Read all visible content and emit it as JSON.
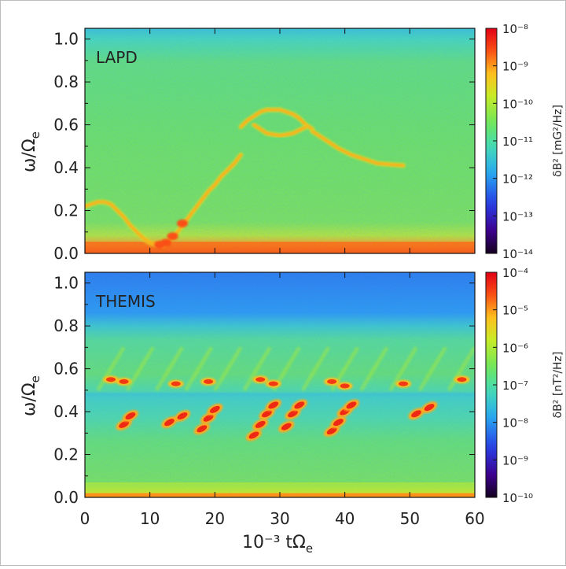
{
  "chart_data": [
    {
      "type": "heatmap",
      "title": "",
      "panel_label": "LAPD",
      "ylabel": "ω/Ω",
      "ylabel_sub": "e",
      "ylim": [
        0.0,
        1.05
      ],
      "yticks": [
        "0.0",
        "0.2",
        "0.4",
        "0.6",
        "0.8",
        "1.0"
      ],
      "ytick_values": [
        0.0,
        0.2,
        0.4,
        0.6,
        0.8,
        1.0
      ],
      "xlim": [
        0,
        60
      ],
      "xticks": [
        0,
        10,
        20,
        30,
        40,
        50,
        60
      ],
      "background_level": "1e-10",
      "features": [
        {
          "x": [
            0,
            1,
            2,
            3,
            4,
            5,
            6,
            7,
            8,
            9,
            10,
            11,
            12
          ],
          "y": [
            0.22,
            0.23,
            0.24,
            0.24,
            0.23,
            0.2,
            0.17,
            0.13,
            0.1,
            0.07,
            0.05,
            0.04,
            0.04
          ]
        },
        {
          "x": [
            12,
            13,
            14,
            15,
            16,
            17,
            18,
            19,
            20,
            21,
            22,
            23,
            24
          ],
          "y": [
            0.04,
            0.06,
            0.09,
            0.13,
            0.17,
            0.21,
            0.25,
            0.29,
            0.32,
            0.36,
            0.39,
            0.42,
            0.46
          ]
        },
        {
          "x": [
            24,
            25,
            26,
            27,
            28,
            29,
            30,
            31,
            32,
            33,
            34,
            35
          ],
          "y": [
            0.59,
            0.62,
            0.64,
            0.66,
            0.67,
            0.67,
            0.67,
            0.66,
            0.65,
            0.63,
            0.6,
            0.58
          ]
        },
        {
          "x": [
            35,
            37,
            39,
            41,
            43,
            45,
            47,
            49
          ],
          "y": [
            0.57,
            0.53,
            0.49,
            0.46,
            0.44,
            0.42,
            0.415,
            0.41
          ]
        },
        {
          "x": [
            26,
            28,
            30,
            32,
            34
          ],
          "y": [
            0.6,
            0.56,
            0.55,
            0.56,
            0.59
          ]
        }
      ],
      "colorbar": {
        "label": "δB² [mG²/Hz]",
        "ticks": [
          "10⁻⁸",
          "10⁻⁹",
          "10⁻¹⁰",
          "10⁻¹¹",
          "10⁻¹²",
          "10⁻¹³",
          "10⁻¹⁴"
        ],
        "log10_range": [
          -14,
          -8
        ]
      }
    },
    {
      "type": "heatmap",
      "title": "",
      "panel_label": "THEMIS",
      "ylabel": "ω/Ω",
      "ylabel_sub": "e",
      "xlabel": "10⁻³ tΩ",
      "xlabel_sub": "e",
      "ylim": [
        0.0,
        1.05
      ],
      "yticks": [
        "0.0",
        "0.2",
        "0.4",
        "0.6",
        "0.8",
        "1.0"
      ],
      "ytick_values": [
        0.0,
        0.2,
        0.4,
        0.6,
        0.8,
        1.0
      ],
      "xlim": [
        0,
        60
      ],
      "xticks": [
        "0",
        "10",
        "20",
        "30",
        "40",
        "50",
        "60"
      ],
      "xtick_values": [
        0,
        10,
        20,
        30,
        40,
        50,
        60
      ],
      "background_level": "1e-7",
      "lower_band_blobs": [
        {
          "x": 6,
          "y": 0.34
        },
        {
          "x": 7,
          "y": 0.38
        },
        {
          "x": 13,
          "y": 0.35
        },
        {
          "x": 15,
          "y": 0.38
        },
        {
          "x": 18,
          "y": 0.32
        },
        {
          "x": 19,
          "y": 0.37
        },
        {
          "x": 20,
          "y": 0.41
        },
        {
          "x": 26,
          "y": 0.29
        },
        {
          "x": 27,
          "y": 0.34
        },
        {
          "x": 28,
          "y": 0.39
        },
        {
          "x": 29,
          "y": 0.43
        },
        {
          "x": 31,
          "y": 0.33
        },
        {
          "x": 32,
          "y": 0.39
        },
        {
          "x": 33,
          "y": 0.43
        },
        {
          "x": 38,
          "y": 0.31
        },
        {
          "x": 39,
          "y": 0.35
        },
        {
          "x": 40,
          "y": 0.4
        },
        {
          "x": 41,
          "y": 0.43
        },
        {
          "x": 51,
          "y": 0.39
        },
        {
          "x": 53,
          "y": 0.42
        }
      ],
      "upper_band_blobs": [
        {
          "x": 4,
          "y": 0.55
        },
        {
          "x": 6,
          "y": 0.54
        },
        {
          "x": 14,
          "y": 0.53
        },
        {
          "x": 19,
          "y": 0.54
        },
        {
          "x": 27,
          "y": 0.55
        },
        {
          "x": 29,
          "y": 0.53
        },
        {
          "x": 38,
          "y": 0.54
        },
        {
          "x": 40,
          "y": 0.52
        },
        {
          "x": 49,
          "y": 0.53
        },
        {
          "x": 58,
          "y": 0.55
        }
      ],
      "colorbar": {
        "label": "δB² [nT²/Hz]",
        "ticks": [
          "10⁻⁴",
          "10⁻⁵",
          "10⁻⁶",
          "10⁻⁷",
          "10⁻⁸",
          "10⁻⁹",
          "10⁻¹⁰"
        ],
        "log10_range": [
          -10,
          -4
        ]
      }
    }
  ]
}
